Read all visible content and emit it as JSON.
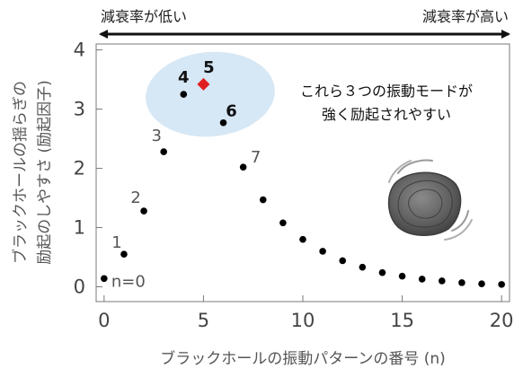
{
  "chart_data": {
    "type": "scatter",
    "title": "",
    "xlabel": "ブラックホールの振動パターンの番号 (n)",
    "ylabel": [
      "ブラックホールの揺らぎの",
      "励起のしやすさ (励起因子)"
    ],
    "xlim": [
      -0.4,
      20.4
    ],
    "ylim": [
      -0.25,
      4.1
    ],
    "xticks": [
      0,
      5,
      10,
      15,
      20
    ],
    "yticks": [
      0,
      1,
      2,
      3,
      4
    ],
    "grid": false,
    "x": [
      0,
      1,
      2,
      3,
      4,
      5,
      6,
      7,
      8,
      9,
      10,
      11,
      12,
      13,
      14,
      15,
      16,
      17,
      18,
      19,
      20
    ],
    "y": [
      0.14,
      0.55,
      1.28,
      2.28,
      3.25,
      3.42,
      2.77,
      2.02,
      1.47,
      1.08,
      0.8,
      0.6,
      0.44,
      0.33,
      0.24,
      0.18,
      0.13,
      0.1,
      0.07,
      0.05,
      0.04
    ],
    "highlight_index": 5,
    "highlight_color": "#e02020",
    "point_color": "#000000",
    "point_labels": [
      {
        "n": 0,
        "text": "n=0",
        "bold": false
      },
      {
        "n": 1,
        "text": "1",
        "bold": false
      },
      {
        "n": 2,
        "text": "2",
        "bold": false
      },
      {
        "n": 3,
        "text": "3",
        "bold": false
      },
      {
        "n": 4,
        "text": "4",
        "bold": true
      },
      {
        "n": 5,
        "text": "5",
        "bold": true
      },
      {
        "n": 6,
        "text": "6",
        "bold": true
      },
      {
        "n": 7,
        "text": "7",
        "bold": false
      }
    ],
    "highlight_region_color": "#cfe3f3",
    "annotation": [
      "これら３つの振動モードが",
      "強く励起されやすい"
    ],
    "top_arrow": {
      "left_text": "減衰率が低い",
      "right_text": "減衰率が高い"
    },
    "illustration_icon": "black-hole-illustration"
  }
}
